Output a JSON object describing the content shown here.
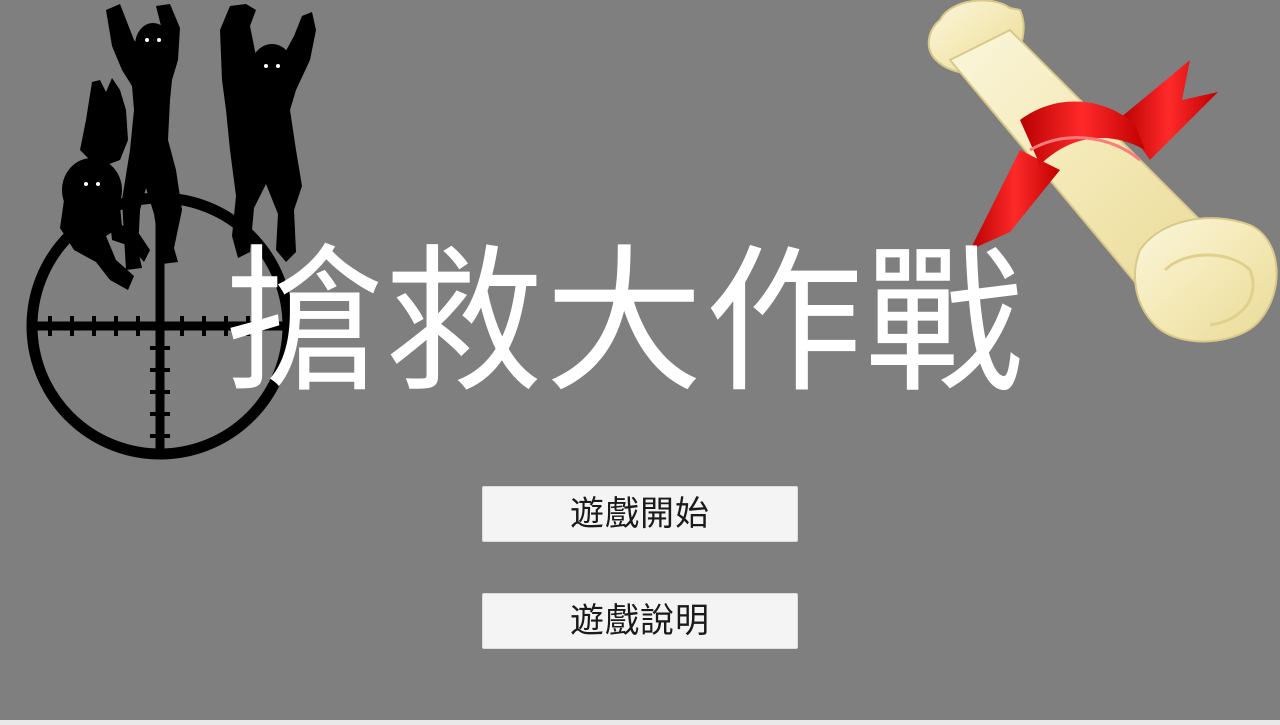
{
  "title": "搶救大作戰",
  "menu": {
    "start_label": "遊戲開始",
    "help_label": "遊戲說明"
  },
  "colors": {
    "background": "#7f7f7f",
    "title_text": "#ffffff",
    "button_background": "#f4f4f4",
    "button_text": "#1a1a1a",
    "ribbon": "#e00000",
    "scroll_paper": "#f7efc4"
  },
  "decorations": {
    "crosshair": "crosshair-scope-icon",
    "zombies": "zombie-silhouettes",
    "scroll": "rolled-scroll-with-red-ribbon"
  }
}
